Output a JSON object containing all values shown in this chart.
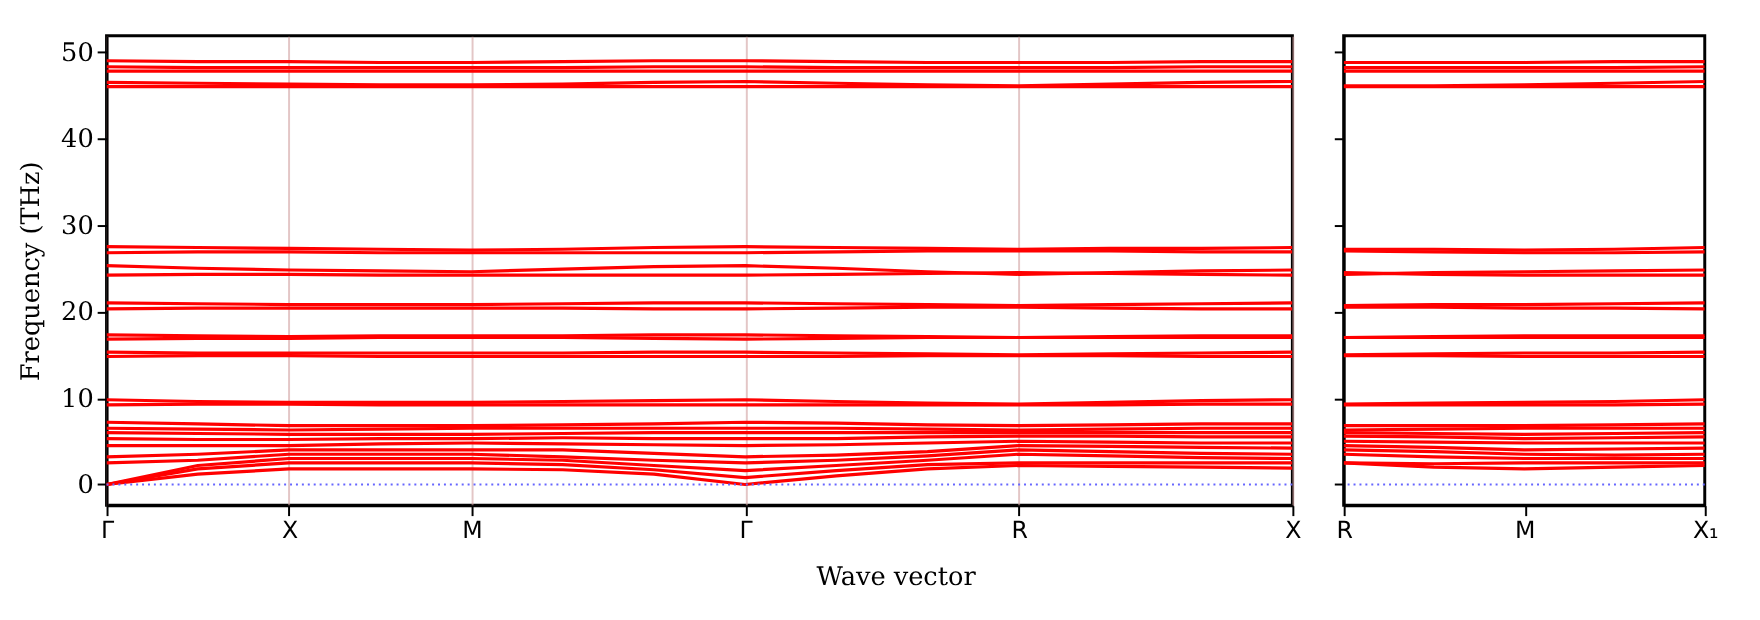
{
  "chart_data": [
    {
      "type": "line",
      "ylabel": "Frequency (THz)",
      "xlabel": "Wave vector",
      "categories": [
        "Γ",
        null,
        "X",
        null,
        "M",
        null,
        null,
        "Γ",
        null,
        null,
        "R",
        null,
        null,
        "X"
      ],
      "ylim": [
        -2.4,
        51.9
      ],
      "yticks": [
        0,
        10,
        20,
        30,
        40,
        50
      ],
      "grid": "x",
      "legend": false,
      "marker": "none",
      "line_style": "solid",
      "ref_lines": [
        {
          "axis": "y",
          "value": 0,
          "color": "#6666ff",
          "line_style": "dotted"
        }
      ],
      "series": [
        {
          "color": "#ff0000",
          "values": [
            0,
            1.2,
            1.8,
            1.8,
            1.8,
            1.7,
            1.2,
            0,
            1,
            1.8,
            2.2,
            2.1,
            2,
            1.9
          ]
        },
        {
          "color": "#ff0000",
          "values": [
            0,
            1.8,
            2.5,
            2.5,
            2.5,
            2.3,
            1.7,
            0.8,
            1.6,
            2.3,
            2.5,
            2.5,
            2.5,
            2.5
          ]
        },
        {
          "color": "#ff0000",
          "values": [
            0,
            2.2,
            3,
            3,
            3,
            2.8,
            2.2,
            1.6,
            2.2,
            2.8,
            3.5,
            3.3,
            3.1,
            3
          ]
        },
        {
          "color": "#ff0000",
          "values": [
            2.5,
            2.8,
            3.5,
            3.5,
            3.5,
            3.2,
            2.8,
            2.5,
            2.8,
            3.3,
            4,
            3.8,
            3.6,
            3.5
          ]
        },
        {
          "color": "#ff0000",
          "values": [
            3.2,
            3.5,
            4,
            4,
            4,
            4,
            3.6,
            3.2,
            3.4,
            3.8,
            4.5,
            4.4,
            4.3,
            4.2
          ]
        },
        {
          "color": "#ff0000",
          "values": [
            4.5,
            4.5,
            4.5,
            4.7,
            4.8,
            4.7,
            4.6,
            4.5,
            4.6,
            4.8,
            5,
            4.9,
            4.8,
            4.8
          ]
        },
        {
          "color": "#ff0000",
          "values": [
            5.3,
            5.2,
            5.2,
            5.3,
            5.3,
            5.4,
            5.3,
            5.3,
            5.3,
            5.5,
            5.6,
            5.6,
            5.5,
            5.5
          ]
        },
        {
          "color": "#ff0000",
          "values": [
            6,
            5.9,
            5.8,
            5.8,
            5.8,
            5.9,
            6,
            6,
            6,
            6,
            6,
            6,
            6,
            6
          ]
        },
        {
          "color": "#ff0000",
          "values": [
            6.5,
            6.4,
            6.3,
            6.4,
            6.5,
            6.5,
            6.5,
            6.5,
            6.5,
            6.4,
            6.3,
            6.4,
            6.5,
            6.5
          ]
        },
        {
          "color": "#ff0000",
          "values": [
            7.2,
            7,
            6.8,
            6.8,
            6.8,
            6.9,
            7,
            7.2,
            7.1,
            6.9,
            6.8,
            6.9,
            7,
            7
          ]
        },
        {
          "color": "#ff0000",
          "values": [
            9.2,
            9.3,
            9.3,
            9.2,
            9.2,
            9.2,
            9.2,
            9.2,
            9.2,
            9.2,
            9.2,
            9.2,
            9.3,
            9.3
          ]
        },
        {
          "color": "#ff0000",
          "values": [
            9.8,
            9.6,
            9.5,
            9.5,
            9.5,
            9.6,
            9.7,
            9.8,
            9.6,
            9.4,
            9.3,
            9.5,
            9.7,
            9.8
          ]
        },
        {
          "color": "#ff0000",
          "values": [
            14.8,
            14.9,
            14.9,
            14.8,
            14.8,
            14.8,
            14.8,
            14.8,
            14.8,
            14.9,
            14.9,
            14.9,
            14.8,
            14.8
          ]
        },
        {
          "color": "#ff0000",
          "values": [
            15.3,
            15.2,
            15.2,
            15.2,
            15.2,
            15.2,
            15.3,
            15.3,
            15.2,
            15.1,
            15,
            15.1,
            15.2,
            15.3
          ]
        },
        {
          "color": "#ff0000",
          "values": [
            16.8,
            16.9,
            16.9,
            17,
            17,
            17,
            16.9,
            16.8,
            16.9,
            17,
            17,
            17,
            17,
            17
          ]
        },
        {
          "color": "#ff0000",
          "values": [
            17.3,
            17.2,
            17.1,
            17.2,
            17.2,
            17.2,
            17.3,
            17.3,
            17.2,
            17.1,
            17,
            17.1,
            17.2,
            17.2
          ]
        },
        {
          "color": "#ff0000",
          "values": [
            20.3,
            20.4,
            20.4,
            20.4,
            20.4,
            20.4,
            20.3,
            20.3,
            20.4,
            20.5,
            20.5,
            20.4,
            20.3,
            20.3
          ]
        },
        {
          "color": "#ff0000",
          "values": [
            21,
            20.9,
            20.8,
            20.8,
            20.8,
            20.9,
            21,
            21,
            20.9,
            20.8,
            20.7,
            20.8,
            20.9,
            21
          ]
        },
        {
          "color": "#ff0000",
          "values": [
            24.2,
            24.3,
            24.3,
            24.2,
            24.2,
            24.2,
            24.2,
            24.2,
            24.3,
            24.4,
            24.5,
            24.4,
            24.3,
            24.2
          ]
        },
        {
          "color": "#ff0000",
          "values": [
            25.3,
            25,
            24.8,
            24.7,
            24.6,
            24.9,
            25.2,
            25.3,
            25,
            24.6,
            24.3,
            24.5,
            24.7,
            24.8
          ]
        },
        {
          "color": "#ff0000",
          "values": [
            26.8,
            26.9,
            26.9,
            26.8,
            26.8,
            26.8,
            26.8,
            26.8,
            26.9,
            27,
            27,
            27,
            26.9,
            26.9
          ]
        },
        {
          "color": "#ff0000",
          "values": [
            27.5,
            27.4,
            27.3,
            27.2,
            27.1,
            27.2,
            27.4,
            27.5,
            27.4,
            27.3,
            27.2,
            27.3,
            27.3,
            27.4
          ]
        },
        {
          "color": "#ff0000",
          "values": [
            46,
            46,
            46,
            46,
            46,
            46,
            46,
            46,
            46,
            46,
            46,
            46,
            46,
            46
          ]
        },
        {
          "color": "#ff0000",
          "values": [
            46.5,
            46.4,
            46.3,
            46.2,
            46.2,
            46.3,
            46.5,
            46.6,
            46.4,
            46.2,
            46.1,
            46.3,
            46.5,
            46.6
          ]
        },
        {
          "color": "#ff0000",
          "values": [
            47.8,
            47.8,
            47.8,
            47.8,
            47.8,
            47.8,
            47.8,
            47.8,
            47.8,
            47.8,
            47.8,
            47.8,
            47.8,
            47.8
          ]
        },
        {
          "color": "#ff0000",
          "values": [
            48.3,
            48.2,
            48.2,
            48.2,
            48.2,
            48.2,
            48.3,
            48.3,
            48.2,
            48.2,
            48.2,
            48.2,
            48.3,
            48.3
          ]
        },
        {
          "color": "#ff0000",
          "values": [
            49,
            48.9,
            48.9,
            48.8,
            48.8,
            48.9,
            49,
            49,
            48.9,
            48.8,
            48.8,
            48.8,
            48.9,
            48.9
          ]
        }
      ]
    },
    {
      "type": "line",
      "categories": [
        "R",
        null,
        "M",
        null,
        "X₁"
      ],
      "ylim": [
        -2.4,
        51.9
      ],
      "yticks": [
        0,
        10,
        20,
        30,
        40,
        50
      ],
      "tick_labels": "x",
      "legend": false,
      "marker": "none",
      "line_style": "solid",
      "ref_lines": [
        {
          "axis": "y",
          "value": 0,
          "color": "#6666ff",
          "line_style": "dotted"
        }
      ],
      "series": [
        {
          "color": "#ff0000",
          "values": [
            2.5,
            2,
            1.8,
            2,
            2.2
          ]
        },
        {
          "color": "#ff0000",
          "values": [
            2.5,
            2.4,
            2.5,
            2.5,
            2.5
          ]
        },
        {
          "color": "#ff0000",
          "values": [
            3.5,
            3.2,
            3,
            3,
            3
          ]
        },
        {
          "color": "#ff0000",
          "values": [
            4,
            3.8,
            3.5,
            3.4,
            3.5
          ]
        },
        {
          "color": "#ff0000",
          "values": [
            4.5,
            4.3,
            4,
            4.1,
            4.2
          ]
        },
        {
          "color": "#ff0000",
          "values": [
            5,
            4.9,
            4.8,
            4.8,
            4.8
          ]
        },
        {
          "color": "#ff0000",
          "values": [
            5.6,
            5.5,
            5.3,
            5.4,
            5.5
          ]
        },
        {
          "color": "#ff0000",
          "values": [
            6,
            5.9,
            5.8,
            5.9,
            6
          ]
        },
        {
          "color": "#ff0000",
          "values": [
            6.3,
            6.4,
            6.5,
            6.5,
            6.5
          ]
        },
        {
          "color": "#ff0000",
          "values": [
            6.8,
            6.8,
            6.8,
            6.9,
            7
          ]
        },
        {
          "color": "#ff0000",
          "values": [
            9.2,
            9.2,
            9.2,
            9.2,
            9.3
          ]
        },
        {
          "color": "#ff0000",
          "values": [
            9.3,
            9.4,
            9.5,
            9.6,
            9.8
          ]
        },
        {
          "color": "#ff0000",
          "values": [
            14.9,
            14.9,
            14.8,
            14.8,
            14.8
          ]
        },
        {
          "color": "#ff0000",
          "values": [
            15,
            15.1,
            15.2,
            15.2,
            15.3
          ]
        },
        {
          "color": "#ff0000",
          "values": [
            17,
            17,
            17,
            17,
            17
          ]
        },
        {
          "color": "#ff0000",
          "values": [
            17,
            17.1,
            17.2,
            17.2,
            17.2
          ]
        },
        {
          "color": "#ff0000",
          "values": [
            20.5,
            20.5,
            20.4,
            20.4,
            20.3
          ]
        },
        {
          "color": "#ff0000",
          "values": [
            20.7,
            20.8,
            20.8,
            20.9,
            21
          ]
        },
        {
          "color": "#ff0000",
          "values": [
            24.5,
            24.3,
            24.2,
            24.2,
            24.2
          ]
        },
        {
          "color": "#ff0000",
          "values": [
            24.3,
            24.5,
            24.6,
            24.7,
            24.8
          ]
        },
        {
          "color": "#ff0000",
          "values": [
            27,
            26.9,
            26.8,
            26.8,
            26.9
          ]
        },
        {
          "color": "#ff0000",
          "values": [
            27.2,
            27.2,
            27.1,
            27.2,
            27.4
          ]
        },
        {
          "color": "#ff0000",
          "values": [
            46,
            46,
            46,
            46,
            46
          ]
        },
        {
          "color": "#ff0000",
          "values": [
            46.1,
            46.1,
            46.2,
            46.4,
            46.6
          ]
        },
        {
          "color": "#ff0000",
          "values": [
            47.8,
            47.8,
            47.8,
            47.8,
            47.8
          ]
        },
        {
          "color": "#ff0000",
          "values": [
            48.2,
            48.2,
            48.2,
            48.2,
            48.3
          ]
        },
        {
          "color": "#ff0000",
          "values": [
            48.8,
            48.8,
            48.8,
            48.9,
            48.9
          ]
        }
      ]
    }
  ]
}
